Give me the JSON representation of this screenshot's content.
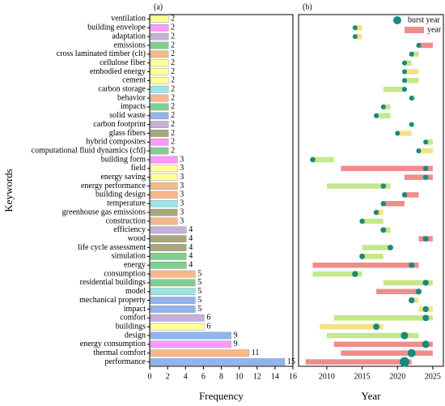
{
  "chart_data": [
    {
      "type": "hbar",
      "title": "(a)",
      "x_label": "Frequency",
      "y_label": "Keywords",
      "categories": [
        "ventilation",
        "building envelope",
        "adaptation",
        "emissions",
        "cross laminated timber (clt)",
        "cellulose fiber",
        "embodied energy",
        "cement",
        "carbon storage",
        "behavior",
        "impacts",
        "solid waste",
        "carbon footprint",
        "glass fibers",
        "hybrid composites",
        "computational fluid dynamics (cfd)",
        "building form",
        "field",
        "energy saving",
        "energy performance",
        "building design",
        "temperature",
        "greenhouse gas emissions",
        "construction",
        "efficiency",
        "wood",
        "life cycle assessment",
        "simulation",
        "energy",
        "consumption",
        "residential buildings",
        "model",
        "mechanical property",
        "impact",
        "comfort",
        "buildings",
        "design",
        "energy consumption",
        "thermal comfort",
        "performance"
      ],
      "values": [
        2,
        2,
        2,
        2,
        2,
        2,
        2,
        2,
        2,
        2,
        2,
        2,
        2,
        2,
        2,
        2,
        3,
        3,
        3,
        3,
        3,
        3,
        3,
        3,
        4,
        4,
        4,
        4,
        4,
        5,
        5,
        5,
        5,
        5,
        6,
        6,
        9,
        9,
        11,
        15
      ],
      "colors": [
        "#ffff99",
        "#ff99ff",
        "#c4b0d8",
        "#7fcf8f",
        "#f7b98a",
        "#ffff99",
        "#ffff99",
        "#ffff99",
        "#99e6e6",
        "#f7b98a",
        "#7fcf8f",
        "#8fb4f0",
        "#c4b0d8",
        "#a8a87a",
        "#ff99ff",
        "#7fcf8f",
        "#ff99ff",
        "#ffff99",
        "#ffff99",
        "#f7b98a",
        "#f7b98a",
        "#99e6e6",
        "#a8a87a",
        "#f7b98a",
        "#c4b0d8",
        "#a8a87a",
        "#a8a87a",
        "#7fcf8f",
        "#7fcf8f",
        "#f7b98a",
        "#7fcf8f",
        "#99e6e6",
        "#8fb4f0",
        "#8fb4f0",
        "#c4b0d8",
        "#ffff99",
        "#8fb4f0",
        "#ff99ff",
        "#f7b98a",
        "#8fb4f0"
      ],
      "xlim": [
        0,
        16
      ],
      "xticks": [
        0,
        2,
        4,
        6,
        8,
        10,
        12,
        14,
        16
      ]
    },
    {
      "type": "timeline",
      "title": "(b)",
      "x_label": "Year",
      "series": [
        {
          "name": "burst year",
          "color": "#1a8a7a"
        },
        {
          "name": "year",
          "color": "#f08c8c"
        }
      ],
      "start": [
        null,
        2014,
        2014,
        2023,
        2022,
        2021,
        2021,
        2021,
        2018,
        2022,
        2018,
        2017,
        null,
        2020,
        2024,
        2023,
        2008,
        2012,
        2021,
        2010,
        2021,
        2018,
        2017,
        2015,
        2018,
        2023,
        2015,
        2015,
        2008,
        2008,
        2018,
        2017,
        2022,
        2023,
        2011,
        2009,
        2010,
        2011,
        2012,
        2007
      ],
      "end": [
        null,
        2015,
        2015,
        2025,
        2023,
        2022,
        2023,
        2023,
        2021,
        2022,
        2019,
        2019,
        null,
        2022,
        2025,
        2025,
        2011,
        2025,
        2025,
        2019,
        2023,
        2021,
        2018,
        2018,
        2019,
        2025,
        2019,
        2018,
        2023,
        2015,
        2025,
        2023,
        2023,
        2025,
        2025,
        2018,
        2023,
        2025,
        2025,
        2022
      ],
      "burst": [
        null,
        2014,
        2014,
        2023,
        2022,
        2021,
        2021,
        2021,
        2021,
        2022,
        2018,
        2017,
        2022,
        2020,
        2024,
        2023,
        2008,
        2024,
        2024,
        2018,
        2021,
        2018,
        2017,
        2015,
        2018,
        2024,
        2019,
        2015,
        2022,
        2014,
        2024,
        2023,
        2022,
        2024,
        2024,
        2017,
        2021,
        2024,
        2022,
        2021
      ],
      "bar_colors": [
        null,
        "#f5e08a",
        "#f5e08a",
        "#f08c8c",
        "#c4e88a",
        "#c4e88a",
        "#f5e08a",
        "#c4e88a",
        "#c4e88a",
        "#c4e88a",
        "#c4e88a",
        "#c4e88a",
        null,
        "#f5e08a",
        "#c4e88a",
        "#f5e08a",
        "#c4e88a",
        "#f08c8c",
        "#f08c8c",
        "#c4e88a",
        "#f08c8c",
        "#f08c8c",
        "#f5e08a",
        "#c4e88a",
        "#c4e88a",
        "#f08c8c",
        "#c4e88a",
        "#c4e88a",
        "#f08c8c",
        "#c4e88a",
        "#c4e88a",
        "#f08c8c",
        "#f5e08a",
        "#f5e08a",
        "#c4e88a",
        "#f5e08a",
        "#c4e88a",
        "#f08c8c",
        "#f08c8c",
        "#f08c8c"
      ],
      "xlim": [
        2006,
        2026.5
      ],
      "xticks": [
        2010,
        2015,
        2020,
        2025
      ]
    }
  ]
}
